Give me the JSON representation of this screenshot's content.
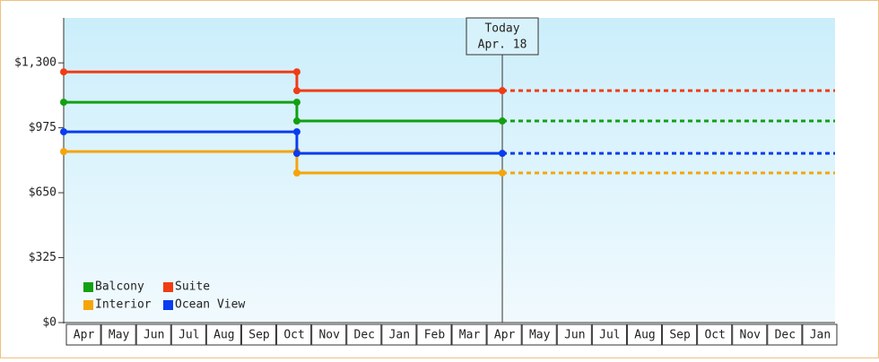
{
  "chart_data": {
    "type": "step-line",
    "categories": [
      "Apr",
      "May",
      "Jun",
      "Jul",
      "Aug",
      "Sep",
      "Oct",
      "Nov",
      "Dec",
      "Jan",
      "Feb",
      "Mar",
      "Apr",
      "May",
      "Jun",
      "Jul",
      "Aug",
      "Sep",
      "Oct",
      "Nov",
      "Dec",
      "Jan"
    ],
    "xlim": [
      0,
      22
    ],
    "ylim": [
      0,
      1525
    ],
    "yticks": [
      {
        "value": 0,
        "label": "$0"
      },
      {
        "value": 325,
        "label": "$325"
      },
      {
        "value": 650,
        "label": "$650"
      },
      {
        "value": 975,
        "label": "$975"
      },
      {
        "value": 1300,
        "label": "$1,300"
      }
    ],
    "series": [
      {
        "name": "Balcony",
        "color": "#12a012",
        "x": [
          0,
          6.65,
          6.65,
          12.51
        ],
        "values": [
          1103,
          1103,
          1009,
          1009
        ]
      },
      {
        "name": "Suite",
        "color": "#f03c14",
        "x": [
          0,
          6.65,
          6.65,
          12.51
        ],
        "values": [
          1255,
          1255,
          1161,
          1161
        ]
      },
      {
        "name": "Interior",
        "color": "#f5a50a",
        "x": [
          0,
          6.65,
          6.65,
          12.51
        ],
        "values": [
          856,
          856,
          749,
          749
        ]
      },
      {
        "name": "Ocean View",
        "color": "#0a3cf0",
        "x": [
          0,
          6.65,
          6.65,
          12.51
        ],
        "values": [
          955,
          955,
          847,
          847
        ]
      }
    ],
    "annotation": {
      "x": 12.51,
      "label": [
        "Today",
        "Apr. 18"
      ]
    },
    "legend": "lower left"
  }
}
